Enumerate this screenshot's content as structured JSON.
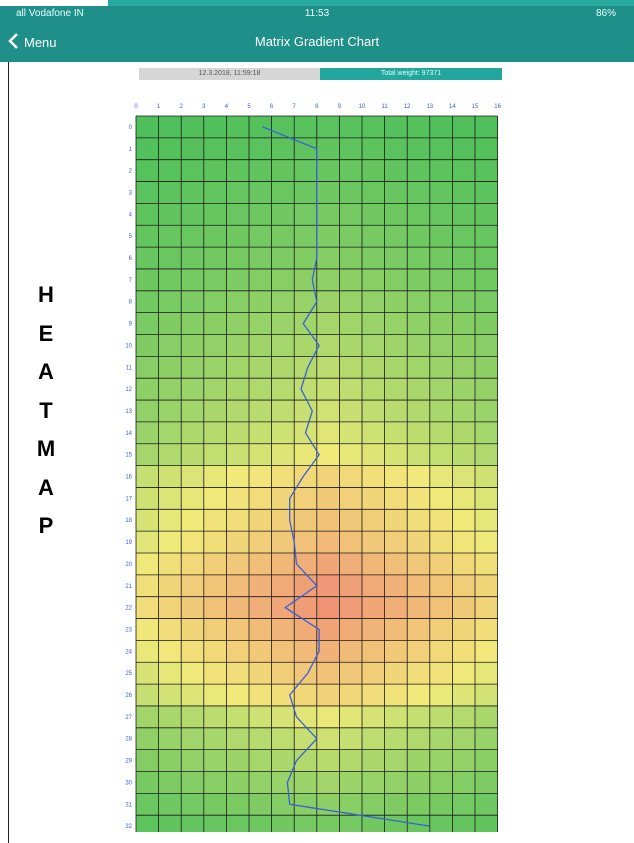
{
  "status_bar": {
    "carrier": "all Vodafone IN",
    "time": "11:53",
    "battery": "86%"
  },
  "nav": {
    "back_label": "Menu",
    "title": "Matrix Gradient Chart"
  },
  "info_bar": {
    "left_text": "12.3.2018, 11:59:18",
    "right_text": "Total weight: 97371"
  },
  "side_label": {
    "letters": [
      "H",
      "E",
      "A",
      "T",
      "M",
      "A",
      "P"
    ]
  },
  "chart_data": {
    "type": "heatmap",
    "title": "",
    "x_ticks": [
      0,
      1,
      2,
      3,
      4,
      5,
      6,
      7,
      8,
      9,
      10,
      11,
      12,
      13,
      14,
      15,
      16
    ],
    "y_ticks": [
      0,
      1,
      2,
      3,
      4,
      5,
      6,
      7,
      8,
      9,
      10,
      11,
      12,
      13,
      14,
      15,
      16,
      17,
      18,
      19,
      20,
      21,
      22,
      23,
      24,
      25,
      26,
      27,
      28,
      29,
      30,
      31,
      32
    ],
    "line": {
      "color": "#3b5fd8",
      "x": [
        5.6,
        8.0,
        8.0,
        8.0,
        8.0,
        8.0,
        8.0,
        7.8,
        8.0,
        7.4,
        8.1,
        7.6,
        7.3,
        7.8,
        7.5,
        8.1,
        7.4,
        6.8,
        6.8,
        7.0,
        7.1,
        8.0,
        6.6,
        8.1,
        8.1,
        7.6,
        6.8,
        7.1,
        8.0,
        7.1,
        6.7,
        6.8,
        13.0
      ],
      "y": [
        0,
        1,
        2,
        3,
        4,
        5,
        6,
        7,
        8,
        9,
        10,
        11,
        12,
        13,
        14,
        15,
        16,
        17,
        18,
        19,
        20,
        21,
        22,
        23,
        24,
        25,
        26,
        27,
        28,
        29,
        30,
        31,
        32
      ]
    },
    "intensity_by_row": [
      0.08,
      0.1,
      0.12,
      0.14,
      0.16,
      0.18,
      0.2,
      0.23,
      0.26,
      0.29,
      0.32,
      0.35,
      0.38,
      0.41,
      0.45,
      0.5,
      0.57,
      0.62,
      0.66,
      0.7,
      0.8,
      0.88,
      0.9,
      0.82,
      0.74,
      0.66,
      0.58,
      0.48,
      0.4,
      0.34,
      0.28,
      0.22,
      0.16
    ],
    "colors": {
      "low": "#3dbb57",
      "mid": "#f1ea7a",
      "high": "#f08a76",
      "grid": "#1b1b1b"
    }
  }
}
